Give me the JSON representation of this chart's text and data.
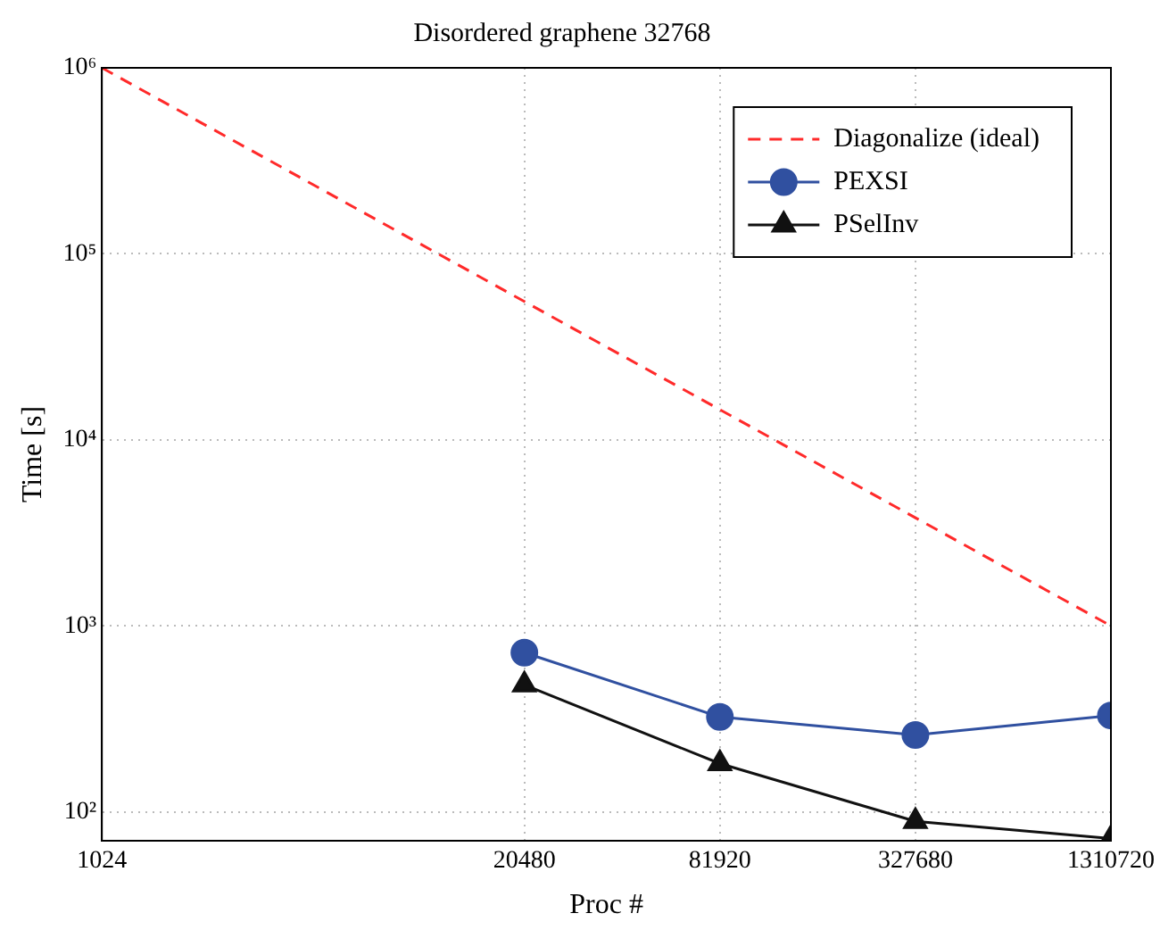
{
  "chart_data": {
    "type": "line",
    "title": "Disordered graphene 32768",
    "xlabel": "Proc #",
    "ylabel": "Time [s]",
    "log": "xy",
    "grid": true,
    "legend": "top right",
    "xlim": [
      1024,
      1310720
    ],
    "xticks": [
      1024,
      20480,
      81920,
      327680,
      1310720
    ],
    "ylim": [
      70,
      1000000
    ],
    "yticks": [
      {
        "value": 100,
        "label": "10²"
      },
      {
        "value": 1000,
        "label": "10³"
      },
      {
        "value": 10000,
        "label": "10⁴"
      },
      {
        "value": 100000,
        "label": "10⁵"
      },
      {
        "value": 1000000,
        "label": "10⁶"
      }
    ],
    "series": [
      {
        "name": "Diagonalize (ideal)",
        "color": "#ff2a2a",
        "x": [
          1024,
          1310720
        ],
        "values": [
          1000000,
          1000
        ],
        "line_style": "dashed",
        "marker": "none"
      },
      {
        "name": "PEXSI",
        "color": "#3050a0",
        "x": [
          20480,
          81920,
          327680,
          1310720
        ],
        "values": [
          718,
          324,
          259,
          330
        ],
        "line_style": "solid",
        "marker": "circle"
      },
      {
        "name": "PSelInv",
        "color": "#111111",
        "x": [
          20480,
          81920,
          327680,
          1310720
        ],
        "values": [
          482,
          182,
          89,
          72
        ],
        "line_style": "solid",
        "marker": "triangle"
      }
    ]
  }
}
